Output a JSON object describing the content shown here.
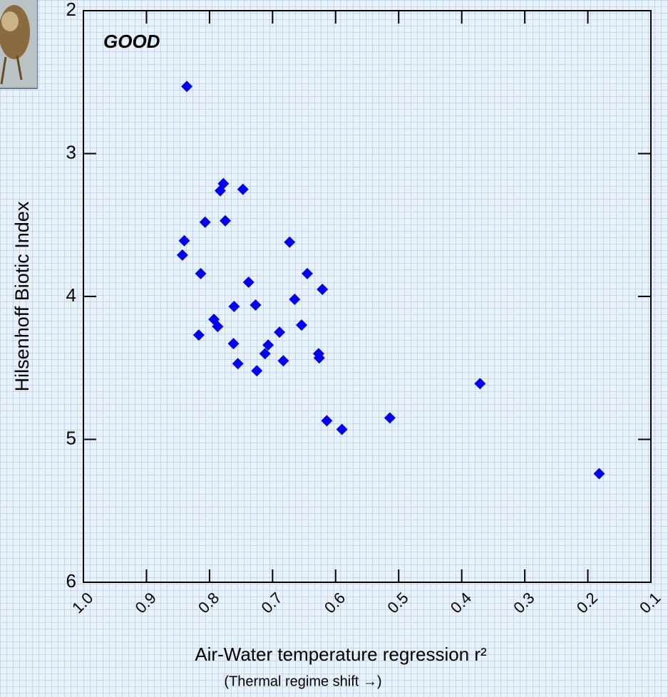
{
  "chart_data": {
    "type": "scatter",
    "annotation": "GOOD",
    "y_label": "Hilsenhoff Biotic Index",
    "x_label": "Air-Water temperature regression r²",
    "x_sublabel": "(Thermal regime shift →)",
    "color": "#0000ee",
    "annotation_color": "#b0138c",
    "xlim": [
      1.0,
      0.1
    ],
    "ylim": [
      6,
      2
    ],
    "xticks": [
      {
        "value": 1.0,
        "label": "1.0"
      },
      0.9,
      0.8,
      0.7,
      0.6,
      0.5,
      0.4,
      0.3,
      0.2,
      0.1
    ],
    "yticks": [
      2,
      3,
      4,
      5,
      6
    ],
    "x": [
      0.836,
      0.778,
      0.783,
      0.747,
      0.807,
      0.775,
      0.84,
      0.673,
      0.843,
      0.814,
      0.645,
      0.738,
      0.621,
      0.665,
      0.761,
      0.727,
      0.793,
      0.787,
      0.654,
      0.817,
      0.689,
      0.762,
      0.707,
      0.712,
      0.627,
      0.626,
      0.755,
      0.683,
      0.725,
      0.371,
      0.614,
      0.514,
      0.59,
      0.182
    ],
    "values": [
      2.53,
      3.21,
      3.26,
      3.25,
      3.48,
      3.47,
      3.61,
      3.62,
      3.71,
      3.84,
      3.84,
      3.9,
      3.95,
      4.02,
      4.07,
      4.06,
      4.16,
      4.21,
      4.2,
      4.27,
      4.25,
      4.33,
      4.34,
      4.4,
      4.4,
      4.43,
      4.47,
      4.45,
      4.52,
      4.61,
      4.87,
      4.85,
      4.93,
      5.24
    ]
  }
}
